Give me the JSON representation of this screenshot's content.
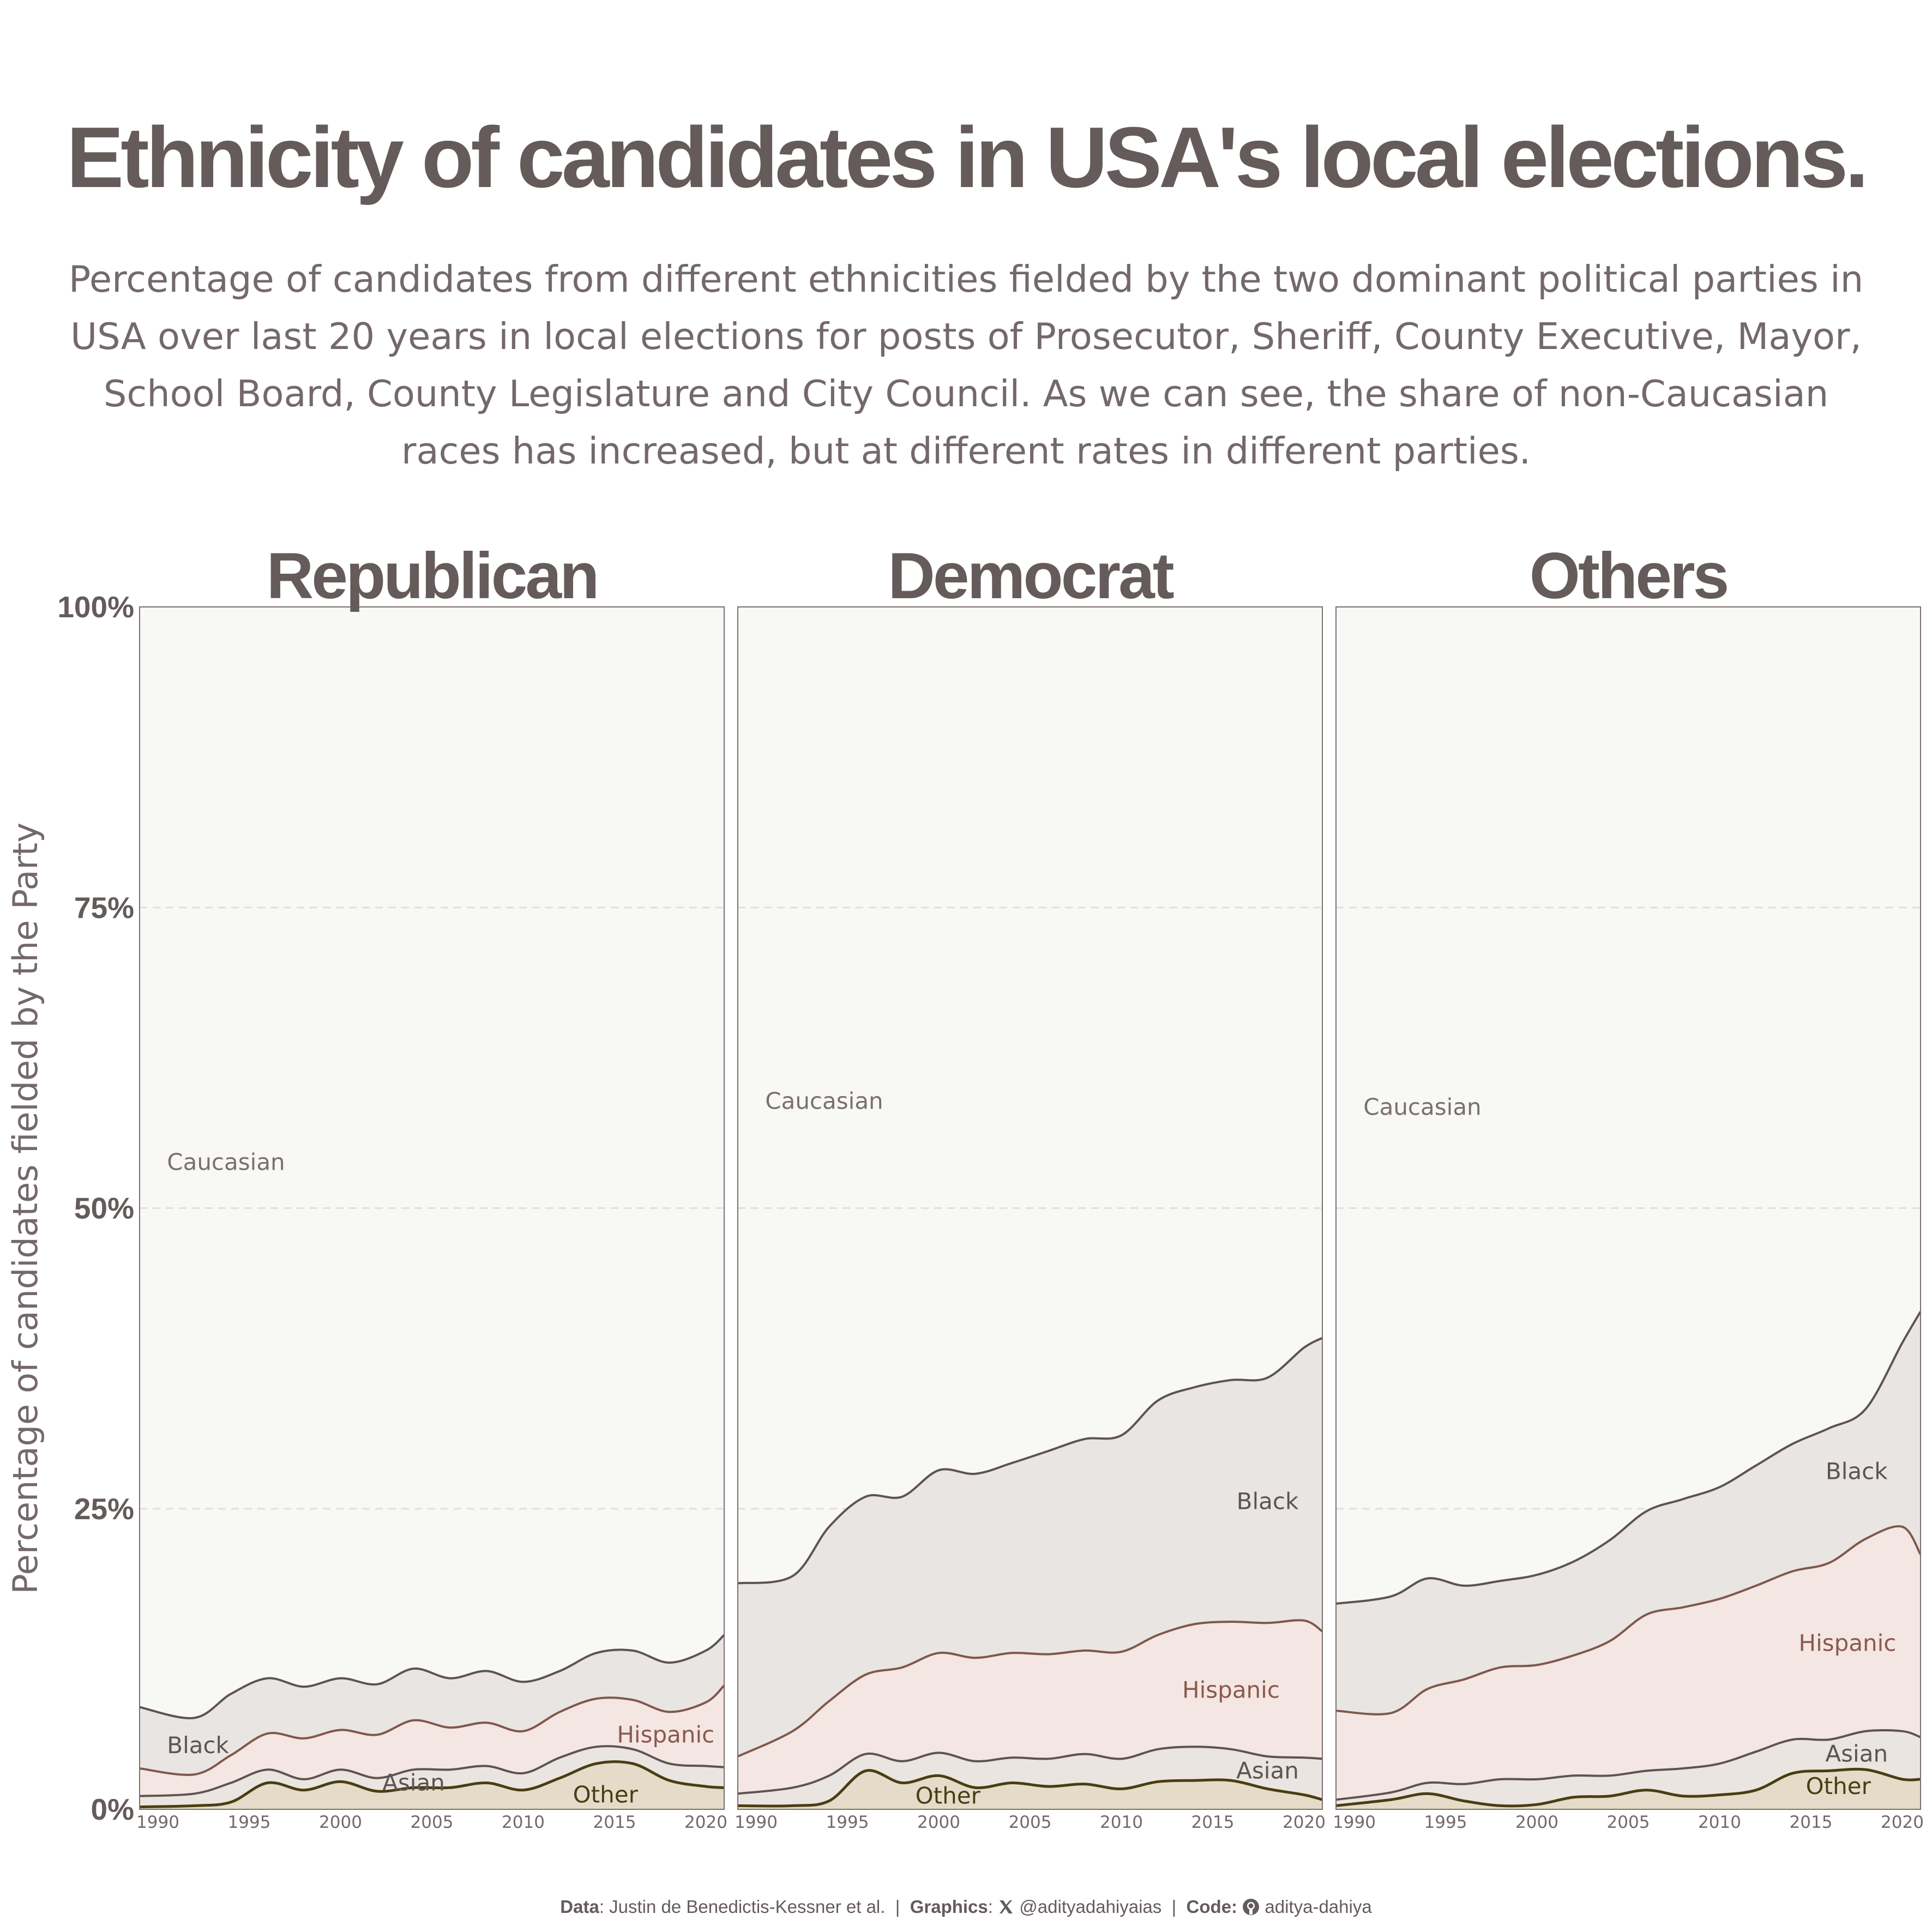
{
  "title": "Ethnicity of candidates in USA's local elections.",
  "subtitle": "Percentage of candidates from different ethnicities fielded by the two dominant political parties in USA over last 20 years in local elections for posts of Prosecutor, Sheriff, County Executive, Mayor, School Board, County Legislature and City Council. As we can see, the share of non-Caucasian races has increased, but at different rates in different parties.",
  "caption": {
    "data_label": "Data",
    "data_value": ": Justin de Benedictis-Kessner et al.",
    "graphics_label": "Graphics",
    "graphics_value": "@adityadahiyaias",
    "code_label": "Code:",
    "code_value": "aditya-dahiya",
    "x_icon": "x-logo-icon",
    "github_icon": "github-icon"
  },
  "colors": {
    "Caucasian": "#f8f8f6",
    "Black": "#e9e5e2",
    "Hispanic": "#f4e6e2",
    "Asian": "#eae5e0",
    "Other": "#e4dcc9",
    "line_Black": "#5e5352",
    "line_Hispanic": "#80574c",
    "line_Asian": "#5e5352",
    "line_Other": "#4a3d12",
    "label_Caucasian": "#7a706e",
    "label_Black": "#5e5352",
    "label_Hispanic": "#8a5a4e",
    "label_Asian": "#5e5352",
    "label_Other": "#4a3d12",
    "text": "#655b5b"
  },
  "chart_data": {
    "type": "area",
    "stacking": "cumulative percent (stacked from bottom: Other, Asian, Hispanic, Black, Caucasian)",
    "ylabel": "Percentage of candidates fielded by the Party",
    "xlabel": "",
    "ylim": [
      0,
      100
    ],
    "xlim": [
      1989,
      2021
    ],
    "y_ticks": [
      "0%",
      "25%",
      "50%",
      "75%",
      "100%"
    ],
    "x_ticks": [
      "1990",
      "1995",
      "2000",
      "2005",
      "2010",
      "2015",
      "2020"
    ],
    "grid": "horizontal dashed",
    "series_order": [
      "Other",
      "Asian",
      "Hispanic",
      "Black",
      "Caucasian"
    ],
    "panels": [
      {
        "name": "Republican",
        "x": [
          1989,
          1992,
          1994,
          1996,
          1998,
          2000,
          2002,
          2004,
          2006,
          2008,
          2010,
          2012,
          2014,
          2016,
          2018,
          2020,
          2021
        ],
        "cumulative": {
          "Other": [
            0.2,
            0.3,
            0.6,
            2.2,
            1.6,
            2.3,
            1.5,
            1.8,
            1.8,
            2.2,
            1.6,
            2.6,
            3.8,
            3.8,
            2.4,
            1.9,
            1.8
          ],
          "Asian": [
            1.1,
            1.3,
            2.2,
            3.3,
            2.5,
            3.3,
            2.6,
            3.3,
            3.3,
            3.6,
            3.0,
            4.3,
            5.2,
            5.0,
            3.8,
            3.6,
            3.5
          ],
          "Hispanic": [
            3.4,
            2.9,
            4.5,
            6.3,
            5.9,
            6.6,
            6.2,
            7.4,
            6.8,
            7.2,
            6.5,
            8.1,
            9.2,
            9.1,
            8.1,
            8.9,
            10.3
          ],
          "Black": [
            8.5,
            7.6,
            9.6,
            10.9,
            10.2,
            10.9,
            10.4,
            11.7,
            10.9,
            11.5,
            10.6,
            11.5,
            13.0,
            13.2,
            12.2,
            13.2,
            14.5
          ],
          "Caucasian": [
            100,
            100,
            100,
            100,
            100,
            100,
            100,
            100,
            100,
            100,
            100,
            100,
            100,
            100,
            100,
            100,
            100
          ]
        },
        "labels": {
          "Caucasian": "Caucasian",
          "Black": "Black",
          "Hispanic": "Hispanic",
          "Asian": "Asian",
          "Other": "Other"
        }
      },
      {
        "name": "Democrat",
        "x": [
          1989,
          1992,
          1994,
          1996,
          1998,
          2000,
          2002,
          2004,
          2006,
          2008,
          2010,
          2012,
          2014,
          2016,
          2018,
          2020,
          2021
        ],
        "cumulative": {
          "Other": [
            0.3,
            0.3,
            0.7,
            3.2,
            2.2,
            2.8,
            1.8,
            2.2,
            1.9,
            2.1,
            1.7,
            2.3,
            2.4,
            2.4,
            1.7,
            1.2,
            0.8
          ],
          "Asian": [
            1.3,
            1.8,
            2.8,
            4.6,
            4.0,
            4.7,
            4.0,
            4.3,
            4.2,
            4.6,
            4.2,
            5.0,
            5.2,
            5.0,
            4.4,
            4.3,
            4.2
          ],
          "Hispanic": [
            4.4,
            6.5,
            9.0,
            11.2,
            11.8,
            13.0,
            12.6,
            13.0,
            12.9,
            13.2,
            13.1,
            14.5,
            15.4,
            15.6,
            15.5,
            15.7,
            14.8
          ],
          "Black": [
            18.8,
            19.4,
            23.5,
            26.0,
            26.0,
            28.2,
            27.9,
            28.8,
            29.8,
            30.8,
            31.1,
            34.0,
            35.1,
            35.7,
            35.9,
            38.4,
            39.2
          ],
          "Caucasian": [
            100,
            100,
            100,
            100,
            100,
            100,
            100,
            100,
            100,
            100,
            100,
            100,
            100,
            100,
            100,
            100,
            100
          ]
        },
        "labels": {
          "Caucasian": "Caucasian",
          "Black": "Black",
          "Hispanic": "Hispanic",
          "Asian": "Asian",
          "Other": "Other"
        }
      },
      {
        "name": "Others",
        "x": [
          1989,
          1992,
          1994,
          1996,
          1998,
          2000,
          2002,
          2004,
          2006,
          2008,
          2010,
          2012,
          2014,
          2016,
          2018,
          2020,
          2021
        ],
        "cumulative": {
          "Other": [
            0.3,
            0.8,
            1.3,
            0.7,
            0.3,
            0.4,
            1.0,
            1.1,
            1.6,
            1.1,
            1.2,
            1.6,
            3.0,
            3.2,
            3.3,
            2.5,
            2.5
          ],
          "Asian": [
            0.8,
            1.4,
            2.2,
            2.1,
            2.5,
            2.5,
            2.8,
            2.8,
            3.2,
            3.4,
            3.8,
            4.8,
            5.8,
            5.8,
            6.5,
            6.5,
            6.0
          ],
          "Hispanic": [
            8.2,
            8.0,
            10.0,
            10.8,
            11.8,
            12.0,
            12.8,
            14.0,
            16.2,
            16.8,
            17.5,
            18.6,
            19.8,
            20.5,
            22.5,
            23.5,
            21.2
          ],
          "Black": [
            17.1,
            17.7,
            19.2,
            18.6,
            19.0,
            19.5,
            20.6,
            22.4,
            24.8,
            25.8,
            26.8,
            28.6,
            30.4,
            31.7,
            33.3,
            38.8,
            41.4
          ],
          "Caucasian": [
            100,
            100,
            100,
            100,
            100,
            100,
            100,
            100,
            100,
            100,
            100,
            100,
            100,
            100,
            100,
            100,
            100
          ]
        },
        "labels": {
          "Caucasian": "Caucasian",
          "Black": "Black",
          "Hispanic": "Hispanic",
          "Asian": "Asian",
          "Other": "Other"
        }
      }
    ]
  }
}
